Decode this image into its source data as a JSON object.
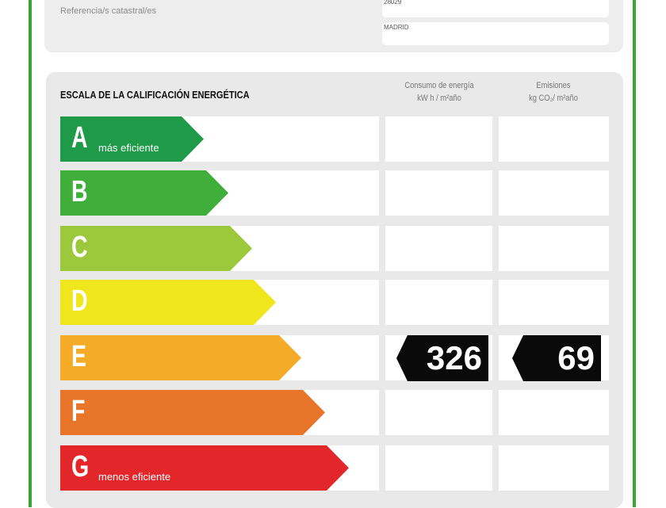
{
  "header": {
    "ref_label": "Referencia/s catastral/es",
    "postal_code": "28029",
    "city": "MADRID"
  },
  "scale": {
    "title": "ESCALA DE LA CALIFICACIÓN ENERGÉTICA",
    "col_consumption": [
      "Consumo de energía",
      "kW h / m²año"
    ],
    "col_emissions": [
      "Emisiones",
      "kg CO₂/ m²año"
    ],
    "classes": [
      {
        "letter": "A",
        "sub": "más eficiente",
        "color": "#1e9a49"
      },
      {
        "letter": "B",
        "sub": "",
        "color": "#3fae3a"
      },
      {
        "letter": "C",
        "sub": "",
        "color": "#9cc83b"
      },
      {
        "letter": "D",
        "sub": "",
        "color": "#f0e61c"
      },
      {
        "letter": "E",
        "sub": "",
        "color": "#f4ac28"
      },
      {
        "letter": "F",
        "sub": "",
        "color": "#e8752a"
      },
      {
        "letter": "G",
        "sub": "menos eficiente",
        "color": "#e3262a"
      }
    ],
    "rating": {
      "class": "E",
      "consumption": "326",
      "emissions": "69"
    }
  }
}
